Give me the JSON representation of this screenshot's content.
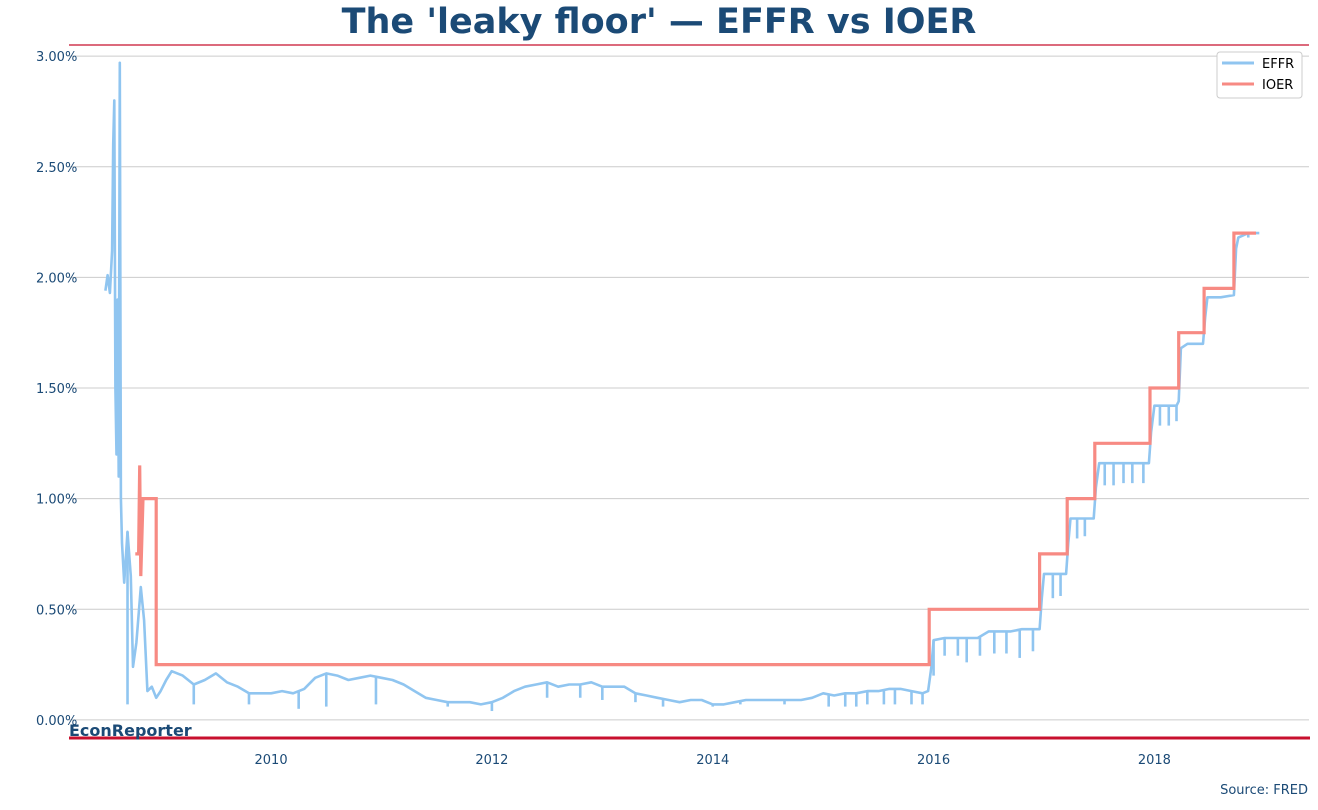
{
  "title": "The 'leaky floor' — EFFR vs IOER",
  "brand": "EconReporter",
  "source": "Source: FRED",
  "colors": {
    "title": "#1b4a76",
    "accent": "#c8102e",
    "effr": "#90c5f0",
    "ioer": "#f78a83",
    "grid": "#cccccc",
    "tick": "#1b4a76"
  },
  "chart_data": {
    "type": "line",
    "title": "The 'leaky floor' — EFFR vs IOER",
    "xlabel": "",
    "ylabel": "",
    "xlim": [
      2008.17,
      2019.4
    ],
    "ylim": [
      -0.1,
      3.1
    ],
    "x_ticks": [
      2010,
      2012,
      2014,
      2016,
      2018
    ],
    "x_tick_labels": [
      "2010",
      "2012",
      "2014",
      "2016",
      "2018"
    ],
    "y_ticks": [
      0,
      0.5,
      1.0,
      1.5,
      2.0,
      2.5,
      3.0
    ],
    "y_tick_labels": [
      "0.00%",
      "0.50%",
      "1.00%",
      "1.50%",
      "2.00%",
      "2.50%",
      "3.00%"
    ],
    "grid": "horizontal",
    "legend_position": "top-right",
    "series": [
      {
        "name": "EFFR",
        "color": "#90c5f0",
        "points": [
          [
            2008.5,
            1.94
          ],
          [
            2008.52,
            2.01
          ],
          [
            2008.54,
            1.93
          ],
          [
            2008.56,
            2.12
          ],
          [
            2008.57,
            2.6
          ],
          [
            2008.58,
            2.8
          ],
          [
            2008.59,
            1.5
          ],
          [
            2008.6,
            1.2
          ],
          [
            2008.61,
            1.9
          ],
          [
            2008.62,
            1.1
          ],
          [
            2008.63,
            2.97
          ],
          [
            2008.64,
            1.0
          ],
          [
            2008.65,
            0.8
          ],
          [
            2008.67,
            0.62
          ],
          [
            2008.7,
            0.85
          ],
          [
            2008.73,
            0.65
          ],
          [
            2008.75,
            0.24
          ],
          [
            2008.78,
            0.35
          ],
          [
            2008.82,
            0.6
          ],
          [
            2008.85,
            0.45
          ],
          [
            2008.88,
            0.13
          ],
          [
            2008.92,
            0.15
          ],
          [
            2008.96,
            0.1
          ],
          [
            2009.0,
            0.13
          ],
          [
            2009.05,
            0.18
          ],
          [
            2009.1,
            0.22
          ],
          [
            2009.2,
            0.2
          ],
          [
            2009.3,
            0.16
          ],
          [
            2009.4,
            0.18
          ],
          [
            2009.5,
            0.21
          ],
          [
            2009.6,
            0.17
          ],
          [
            2009.7,
            0.15
          ],
          [
            2009.8,
            0.12
          ],
          [
            2009.9,
            0.12
          ],
          [
            2010.0,
            0.12
          ],
          [
            2010.1,
            0.13
          ],
          [
            2010.2,
            0.12
          ],
          [
            2010.3,
            0.14
          ],
          [
            2010.4,
            0.19
          ],
          [
            2010.5,
            0.21
          ],
          [
            2010.6,
            0.2
          ],
          [
            2010.7,
            0.18
          ],
          [
            2010.8,
            0.19
          ],
          [
            2010.9,
            0.2
          ],
          [
            2011.0,
            0.19
          ],
          [
            2011.1,
            0.18
          ],
          [
            2011.2,
            0.16
          ],
          [
            2011.3,
            0.13
          ],
          [
            2011.4,
            0.1
          ],
          [
            2011.5,
            0.09
          ],
          [
            2011.6,
            0.08
          ],
          [
            2011.7,
            0.08
          ],
          [
            2011.8,
            0.08
          ],
          [
            2011.9,
            0.07
          ],
          [
            2012.0,
            0.08
          ],
          [
            2012.1,
            0.1
          ],
          [
            2012.2,
            0.13
          ],
          [
            2012.3,
            0.15
          ],
          [
            2012.4,
            0.16
          ],
          [
            2012.5,
            0.17
          ],
          [
            2012.6,
            0.15
          ],
          [
            2012.7,
            0.16
          ],
          [
            2012.8,
            0.16
          ],
          [
            2012.9,
            0.17
          ],
          [
            2013.0,
            0.15
          ],
          [
            2013.1,
            0.15
          ],
          [
            2013.2,
            0.15
          ],
          [
            2013.3,
            0.12
          ],
          [
            2013.4,
            0.11
          ],
          [
            2013.5,
            0.1
          ],
          [
            2013.6,
            0.09
          ],
          [
            2013.7,
            0.08
          ],
          [
            2013.8,
            0.09
          ],
          [
            2013.9,
            0.09
          ],
          [
            2014.0,
            0.07
          ],
          [
            2014.1,
            0.07
          ],
          [
            2014.2,
            0.08
          ],
          [
            2014.3,
            0.09
          ],
          [
            2014.4,
            0.09
          ],
          [
            2014.5,
            0.09
          ],
          [
            2014.6,
            0.09
          ],
          [
            2014.7,
            0.09
          ],
          [
            2014.8,
            0.09
          ],
          [
            2014.9,
            0.1
          ],
          [
            2015.0,
            0.12
          ],
          [
            2015.1,
            0.11
          ],
          [
            2015.2,
            0.12
          ],
          [
            2015.3,
            0.12
          ],
          [
            2015.4,
            0.13
          ],
          [
            2015.5,
            0.13
          ],
          [
            2015.6,
            0.14
          ],
          [
            2015.7,
            0.14
          ],
          [
            2015.8,
            0.13
          ],
          [
            2015.9,
            0.12
          ],
          [
            2015.95,
            0.13
          ],
          [
            2015.98,
            0.24
          ],
          [
            2016.0,
            0.36
          ],
          [
            2016.1,
            0.37
          ],
          [
            2016.2,
            0.37
          ],
          [
            2016.3,
            0.37
          ],
          [
            2016.4,
            0.37
          ],
          [
            2016.5,
            0.4
          ],
          [
            2016.6,
            0.4
          ],
          [
            2016.7,
            0.4
          ],
          [
            2016.8,
            0.41
          ],
          [
            2016.9,
            0.41
          ],
          [
            2016.96,
            0.41
          ],
          [
            2016.98,
            0.55
          ],
          [
            2017.0,
            0.66
          ],
          [
            2017.1,
            0.66
          ],
          [
            2017.2,
            0.66
          ],
          [
            2017.22,
            0.8
          ],
          [
            2017.24,
            0.91
          ],
          [
            2017.35,
            0.91
          ],
          [
            2017.45,
            0.91
          ],
          [
            2017.47,
            1.05
          ],
          [
            2017.5,
            1.16
          ],
          [
            2017.7,
            1.16
          ],
          [
            2017.9,
            1.16
          ],
          [
            2017.95,
            1.16
          ],
          [
            2017.97,
            1.3
          ],
          [
            2018.0,
            1.42
          ],
          [
            2018.2,
            1.42
          ],
          [
            2018.22,
            1.44
          ],
          [
            2018.24,
            1.68
          ],
          [
            2018.3,
            1.7
          ],
          [
            2018.44,
            1.7
          ],
          [
            2018.46,
            1.82
          ],
          [
            2018.48,
            1.91
          ],
          [
            2018.6,
            1.91
          ],
          [
            2018.72,
            1.92
          ],
          [
            2018.74,
            2.13
          ],
          [
            2018.76,
            2.18
          ],
          [
            2018.85,
            2.2
          ],
          [
            2018.95,
            2.2
          ]
        ],
        "dips": [
          [
            2008.7,
            0.07
          ],
          [
            2009.3,
            0.07
          ],
          [
            2009.8,
            0.07
          ],
          [
            2010.25,
            0.05
          ],
          [
            2010.5,
            0.06
          ],
          [
            2010.95,
            0.07
          ],
          [
            2011.6,
            0.06
          ],
          [
            2012.0,
            0.04
          ],
          [
            2012.5,
            0.1
          ],
          [
            2012.8,
            0.1
          ],
          [
            2013.0,
            0.09
          ],
          [
            2013.3,
            0.08
          ],
          [
            2013.55,
            0.06
          ],
          [
            2014.0,
            0.06
          ],
          [
            2014.25,
            0.07
          ],
          [
            2014.65,
            0.07
          ],
          [
            2015.05,
            0.06
          ],
          [
            2015.2,
            0.06
          ],
          [
            2015.3,
            0.06
          ],
          [
            2015.4,
            0.07
          ],
          [
            2015.55,
            0.07
          ],
          [
            2015.65,
            0.07
          ],
          [
            2015.8,
            0.07
          ],
          [
            2015.9,
            0.07
          ],
          [
            2016.0,
            0.2
          ],
          [
            2016.1,
            0.29
          ],
          [
            2016.22,
            0.29
          ],
          [
            2016.3,
            0.26
          ],
          [
            2016.42,
            0.29
          ],
          [
            2016.55,
            0.3
          ],
          [
            2016.66,
            0.3
          ],
          [
            2016.78,
            0.28
          ],
          [
            2016.9,
            0.31
          ],
          [
            2017.08,
            0.55
          ],
          [
            2017.15,
            0.56
          ],
          [
            2017.3,
            0.82
          ],
          [
            2017.37,
            0.83
          ],
          [
            2017.55,
            1.06
          ],
          [
            2017.63,
            1.06
          ],
          [
            2017.72,
            1.07
          ],
          [
            2017.8,
            1.07
          ],
          [
            2017.9,
            1.07
          ],
          [
            2018.05,
            1.33
          ],
          [
            2018.13,
            1.33
          ],
          [
            2018.2,
            1.35
          ],
          [
            2018.85,
            2.18
          ]
        ]
      },
      {
        "name": "IOER",
        "color": "#f78a83",
        "points": [
          [
            2008.77,
            0.75
          ],
          [
            2008.8,
            0.75
          ],
          [
            2008.81,
            1.15
          ],
          [
            2008.82,
            0.65
          ],
          [
            2008.84,
            1.0
          ],
          [
            2008.96,
            1.0
          ],
          [
            2008.96,
            0.25
          ],
          [
            2015.96,
            0.25
          ],
          [
            2015.96,
            0.5
          ],
          [
            2016.96,
            0.5
          ],
          [
            2016.96,
            0.75
          ],
          [
            2017.21,
            0.75
          ],
          [
            2017.21,
            1.0
          ],
          [
            2017.46,
            1.0
          ],
          [
            2017.46,
            1.25
          ],
          [
            2017.96,
            1.25
          ],
          [
            2017.96,
            1.5
          ],
          [
            2018.22,
            1.5
          ],
          [
            2018.22,
            1.75
          ],
          [
            2018.45,
            1.75
          ],
          [
            2018.45,
            1.95
          ],
          [
            2018.72,
            1.95
          ],
          [
            2018.72,
            2.2
          ],
          [
            2018.92,
            2.2
          ]
        ]
      }
    ]
  }
}
